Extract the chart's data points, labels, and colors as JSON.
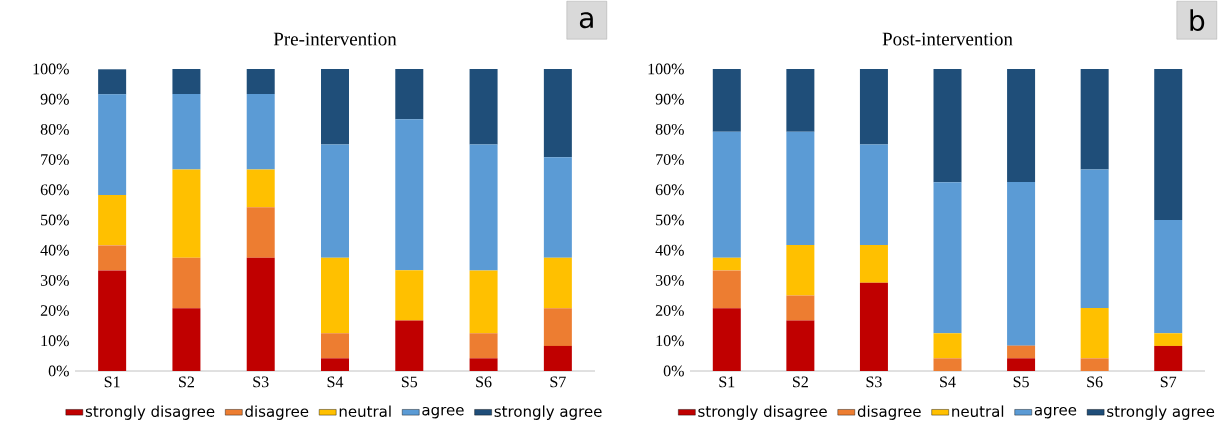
{
  "chart_data": [
    {
      "type": "bar",
      "stacked": true,
      "title": "Pre-intervention",
      "annotations": [
        "a"
      ],
      "legend": "bottom",
      "categories": [
        "S1",
        "S2",
        "S3",
        "S4",
        "S5",
        "S6",
        "S7"
      ],
      "ylim": [
        0,
        100
      ],
      "yticks": [
        {
          "value": 0,
          "label": "0%"
        },
        {
          "value": 10,
          "label": "10%"
        },
        {
          "value": 20,
          "label": "20%"
        },
        {
          "value": 30,
          "label": "30%"
        },
        {
          "value": 40,
          "label": "40%"
        },
        {
          "value": 50,
          "label": "50%"
        },
        {
          "value": 60,
          "label": "60%"
        },
        {
          "value": 70,
          "label": "70%"
        },
        {
          "value": 80,
          "label": "80%"
        },
        {
          "value": 90,
          "label": "90%"
        },
        {
          "value": 100,
          "label": "100%"
        }
      ],
      "series": [
        {
          "name": "strongly disagree",
          "color": "#c00000",
          "values": [
            33.3,
            20.8,
            37.5,
            4.2,
            16.7,
            4.2,
            8.3
          ]
        },
        {
          "name": "disagree",
          "color": "#ed7d31",
          "values": [
            8.3,
            16.7,
            16.7,
            8.3,
            0,
            8.3,
            12.5
          ]
        },
        {
          "name": "neutral",
          "color": "#ffc000",
          "values": [
            16.7,
            29.2,
            12.5,
            25,
            16.7,
            20.8,
            16.7
          ]
        },
        {
          "name": "agree",
          "color": "#5b9bd5",
          "values": [
            33.3,
            25,
            25,
            37.5,
            50,
            41.7,
            33.3
          ]
        },
        {
          "name": "strongly agree",
          "color": "#1f4e79",
          "values": [
            8.3,
            8.3,
            8.3,
            25,
            16.7,
            25,
            29.2
          ]
        }
      ]
    },
    {
      "type": "bar",
      "stacked": true,
      "title": "Post-intervention",
      "annotations": [
        "b"
      ],
      "legend": "bottom",
      "categories": [
        "S1",
        "S2",
        "S3",
        "S4",
        "S5",
        "S6",
        "S7"
      ],
      "ylim": [
        0,
        100
      ],
      "yticks": [
        {
          "value": 0,
          "label": "0%"
        },
        {
          "value": 10,
          "label": "10%"
        },
        {
          "value": 20,
          "label": "20%"
        },
        {
          "value": 30,
          "label": "30%"
        },
        {
          "value": 40,
          "label": "40%"
        },
        {
          "value": 50,
          "label": "50%"
        },
        {
          "value": 60,
          "label": "60%"
        },
        {
          "value": 70,
          "label": "70%"
        },
        {
          "value": 80,
          "label": "80%"
        },
        {
          "value": 90,
          "label": "90%"
        },
        {
          "value": 100,
          "label": "100%"
        }
      ],
      "series": [
        {
          "name": "strongly disagree",
          "color": "#c00000",
          "values": [
            20.8,
            16.7,
            29.2,
            0,
            4.2,
            0,
            8.3
          ]
        },
        {
          "name": "disagree",
          "color": "#ed7d31",
          "values": [
            12.5,
            8.3,
            0,
            4.2,
            4.2,
            4.2,
            0
          ]
        },
        {
          "name": "neutral",
          "color": "#ffc000",
          "values": [
            4.2,
            16.7,
            12.5,
            8.3,
            0,
            16.7,
            4.2
          ]
        },
        {
          "name": "agree",
          "color": "#5b9bd5",
          "values": [
            41.7,
            37.5,
            33.3,
            50,
            54.2,
            45.8,
            37.5
          ]
        },
        {
          "name": "strongly agree",
          "color": "#1f4e79",
          "values": [
            20.8,
            20.8,
            25,
            37.5,
            37.5,
            33.3,
            50
          ]
        }
      ]
    }
  ]
}
